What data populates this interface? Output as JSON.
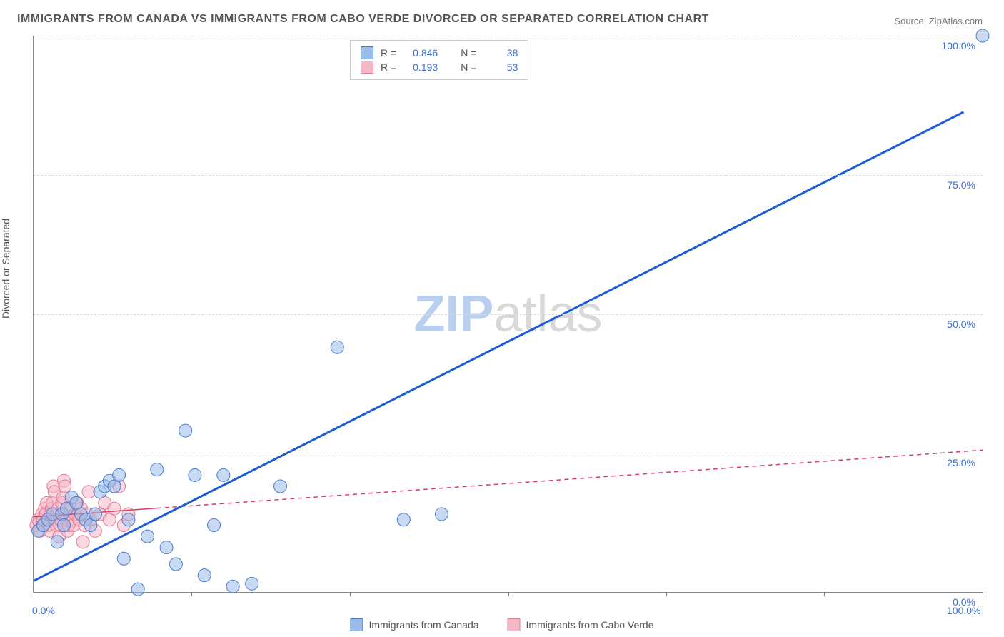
{
  "title": "IMMIGRANTS FROM CANADA VS IMMIGRANTS FROM CABO VERDE DIVORCED OR SEPARATED CORRELATION CHART",
  "source_label": "Source:",
  "source_value": "ZipAtlas.com",
  "yaxis_title": "Divorced or Separated",
  "watermark": {
    "part1": "ZIP",
    "part2": "atlas",
    "color1": "#b9cfef",
    "color2": "#d8d8d8"
  },
  "chart": {
    "type": "scatter",
    "background_color": "#ffffff",
    "grid_color": "#dddddd",
    "axis_color": "#888888",
    "xlim": [
      0,
      100
    ],
    "ylim": [
      0,
      100
    ],
    "y_ticks": [
      0,
      25,
      50,
      75,
      100
    ],
    "y_tick_labels": [
      "0.0%",
      "25.0%",
      "50.0%",
      "75.0%",
      "100.0%"
    ],
    "x_ticks": [
      0,
      16.66,
      33.33,
      50,
      66.66,
      83.33,
      100
    ],
    "x_tick_labels_shown": {
      "0": "0.0%",
      "100": "100.0%"
    },
    "tick_label_color": "#3b6fd6",
    "tick_label_fontsize": 14,
    "marker_radius": 9,
    "marker_opacity": 0.55,
    "series": [
      {
        "name": "Immigrants from Canada",
        "fill_color": "#9bbce8",
        "stroke_color": "#4a7bd0",
        "trend": {
          "slope": 0.86,
          "intercept": 2.0,
          "color": "#1e5bd6",
          "width": 3,
          "dash": "none",
          "x_visible_max": 98
        },
        "r_value": "0.846",
        "n_value": "38",
        "points": [
          [
            0.5,
            11
          ],
          [
            1,
            12
          ],
          [
            1.5,
            13
          ],
          [
            2,
            14
          ],
          [
            2.5,
            9
          ],
          [
            3,
            14
          ],
          [
            3.2,
            12
          ],
          [
            3.5,
            15
          ],
          [
            4,
            17
          ],
          [
            4.5,
            16
          ],
          [
            5,
            14
          ],
          [
            5.5,
            13
          ],
          [
            6,
            12
          ],
          [
            6.5,
            14
          ],
          [
            7,
            18
          ],
          [
            7.5,
            19
          ],
          [
            8,
            20
          ],
          [
            8.5,
            19
          ],
          [
            9,
            21
          ],
          [
            9.5,
            6
          ],
          [
            10,
            13
          ],
          [
            11,
            0.5
          ],
          [
            12,
            10
          ],
          [
            13,
            22
          ],
          [
            14,
            8
          ],
          [
            15,
            5
          ],
          [
            16,
            29
          ],
          [
            17,
            21
          ],
          [
            18,
            3
          ],
          [
            19,
            12
          ],
          [
            20,
            21
          ],
          [
            21,
            1
          ],
          [
            23,
            1.5
          ],
          [
            26,
            19
          ],
          [
            32,
            44
          ],
          [
            39,
            13
          ],
          [
            43,
            14
          ],
          [
            100,
            100
          ]
        ]
      },
      {
        "name": "Immigrants from Cabo Verde",
        "fill_color": "#f5b8c7",
        "stroke_color": "#e27a98",
        "trend": {
          "slope": 0.12,
          "intercept": 13.5,
          "color": "#e03a60",
          "width": 1.5,
          "dash": "6,5",
          "x_visible_max": 100,
          "solid_until": 13
        },
        "r_value": "0.193",
        "n_value": "53",
        "points": [
          [
            0.3,
            12
          ],
          [
            0.5,
            13
          ],
          [
            0.7,
            11
          ],
          [
            0.9,
            14
          ],
          [
            1.0,
            13
          ],
          [
            1.1,
            12
          ],
          [
            1.2,
            15
          ],
          [
            1.3,
            14
          ],
          [
            1.4,
            16
          ],
          [
            1.5,
            13
          ],
          [
            1.6,
            12
          ],
          [
            1.7,
            11
          ],
          [
            1.8,
            14
          ],
          [
            1.9,
            15
          ],
          [
            2.0,
            16
          ],
          [
            2.1,
            19
          ],
          [
            2.2,
            18
          ],
          [
            2.3,
            13
          ],
          [
            2.4,
            12
          ],
          [
            2.5,
            14
          ],
          [
            2.6,
            15
          ],
          [
            2.7,
            10
          ],
          [
            2.8,
            12
          ],
          [
            2.9,
            13
          ],
          [
            3.0,
            16
          ],
          [
            3.1,
            17
          ],
          [
            3.2,
            20
          ],
          [
            3.3,
            19
          ],
          [
            3.4,
            14
          ],
          [
            3.5,
            13
          ],
          [
            3.6,
            11
          ],
          [
            3.7,
            12
          ],
          [
            3.8,
            14
          ],
          [
            3.9,
            15
          ],
          [
            4.0,
            13
          ],
          [
            4.2,
            12
          ],
          [
            4.4,
            14
          ],
          [
            4.6,
            16
          ],
          [
            4.8,
            13
          ],
          [
            5.0,
            15
          ],
          [
            5.2,
            9
          ],
          [
            5.4,
            12
          ],
          [
            5.6,
            14
          ],
          [
            5.8,
            18
          ],
          [
            6.0,
            13
          ],
          [
            6.5,
            11
          ],
          [
            7.0,
            14
          ],
          [
            7.5,
            16
          ],
          [
            8.0,
            13
          ],
          [
            8.5,
            15
          ],
          [
            9.0,
            19
          ],
          [
            9.5,
            12
          ],
          [
            10.0,
            14
          ]
        ]
      }
    ]
  },
  "legend_top": {
    "r_label": "R =",
    "n_label": "N ="
  },
  "legend_bottom": {
    "items": [
      "Immigrants from Canada",
      "Immigrants from Cabo Verde"
    ]
  }
}
